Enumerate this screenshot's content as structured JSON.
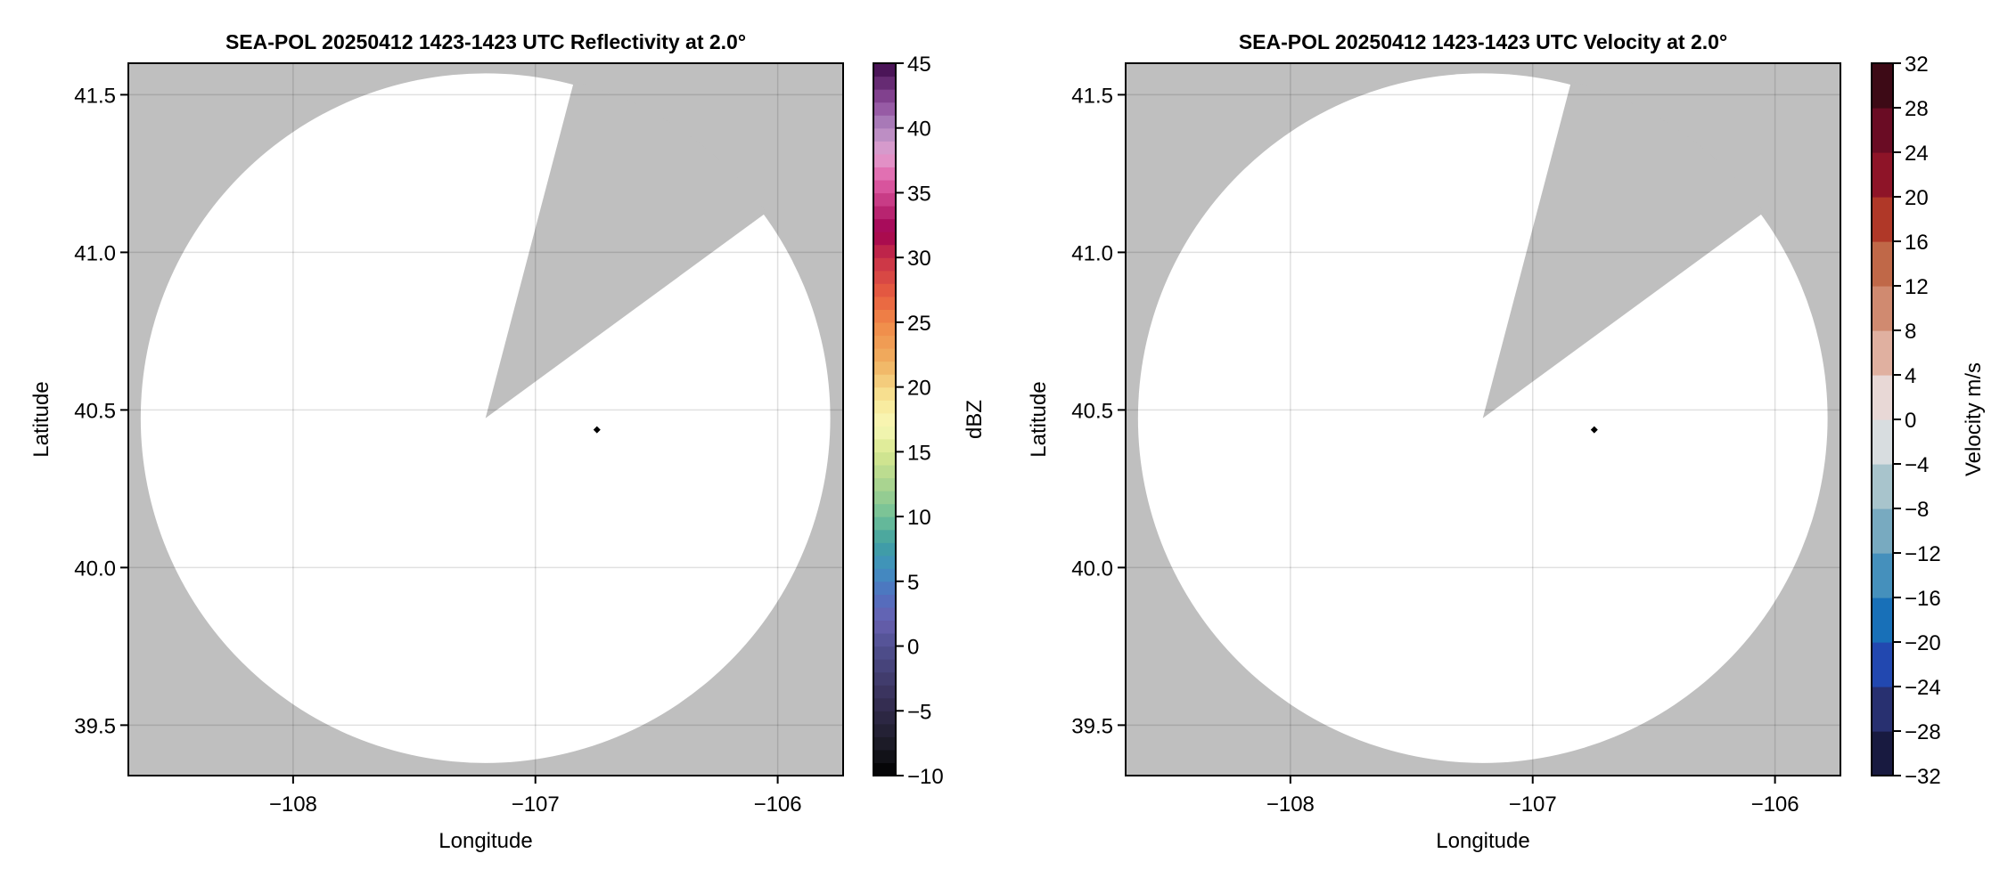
{
  "chart_data": [
    {
      "type": "heatmap",
      "title": "SEA-POL 20250412 1423-1423 UTC Reflectivity at 2.0°",
      "xlabel": "Longitude",
      "ylabel": "Latitude",
      "xlim": [
        -108.68,
        -105.73
      ],
      "ylim": [
        39.34,
        41.6
      ],
      "xticks": [
        -108,
        -107,
        -106
      ],
      "xtick_labels": [
        "−108",
        "−107",
        "−106"
      ],
      "yticks": [
        39.5,
        40.0,
        40.5,
        41.0,
        41.5
      ],
      "ytick_labels": [
        "39.5",
        "40.0",
        "40.5",
        "41.0",
        "41.5"
      ],
      "grid": true,
      "background_color": "#bfbfbf",
      "coverage_color": "#ffffff",
      "coverage_center": [
        -107.206,
        40.474
      ],
      "coverage_radius_deg": [
        1.423,
        1.094
      ],
      "blocked_sector_edges": [
        [
          -106.847,
          41.524
        ],
        [
          -106.063,
          41.117
        ]
      ],
      "radar_marker": [
        -106.746,
        40.437
      ],
      "colorbar": {
        "label": "dBZ",
        "range": [
          -10,
          45
        ],
        "ticks": [
          -10,
          -5,
          0,
          5,
          10,
          15,
          20,
          25,
          30,
          35,
          40,
          45
        ],
        "tick_labels": [
          "−10",
          "−5",
          "0",
          "5",
          "10",
          "15",
          "20",
          "25",
          "30",
          "35",
          "40",
          "45"
        ],
        "step": 1,
        "anchors": [
          [
            -10,
            "#000000"
          ],
          [
            -8,
            "#181820"
          ],
          [
            -4,
            "#383058"
          ],
          [
            0,
            "#505090"
          ],
          [
            2,
            "#6860b0"
          ],
          [
            4,
            "#5070c0"
          ],
          [
            6,
            "#4090c0"
          ],
          [
            8,
            "#40a0a0"
          ],
          [
            10,
            "#70c098"
          ],
          [
            12,
            "#a0d090"
          ],
          [
            15,
            "#d8e890"
          ],
          [
            17,
            "#f8f8b8"
          ],
          [
            19,
            "#f8e898"
          ],
          [
            22,
            "#f0b060"
          ],
          [
            25,
            "#f08848"
          ],
          [
            27,
            "#e86040"
          ],
          [
            30,
            "#c83048"
          ],
          [
            32,
            "#a00050"
          ],
          [
            34,
            "#c0307a"
          ],
          [
            36,
            "#e060a8"
          ],
          [
            38,
            "#e2a0d0"
          ],
          [
            40,
            "#b088c0"
          ],
          [
            42,
            "#8e4c9c"
          ],
          [
            45,
            "#3d0a4a"
          ]
        ]
      }
    },
    {
      "type": "heatmap",
      "title": "SEA-POL 20250412 1423-1423 UTC Velocity at 2.0°",
      "xlabel": "Longitude",
      "ylabel": "Latitude",
      "xlim": [
        -108.68,
        -105.73
      ],
      "ylim": [
        39.34,
        41.6
      ],
      "xticks": [
        -108,
        -107,
        -106
      ],
      "xtick_labels": [
        "−108",
        "−107",
        "−106"
      ],
      "yticks": [
        39.5,
        40.0,
        40.5,
        41.0,
        41.5
      ],
      "ytick_labels": [
        "39.5",
        "40.0",
        "40.5",
        "41.0",
        "41.5"
      ],
      "grid": true,
      "background_color": "#bfbfbf",
      "coverage_color": "#ffffff",
      "coverage_center": [
        -107.206,
        40.474
      ],
      "coverage_radius_deg": [
        1.423,
        1.094
      ],
      "blocked_sector_edges": [
        [
          -106.847,
          41.524
        ],
        [
          -106.063,
          41.117
        ]
      ],
      "radar_marker": [
        -106.746,
        40.437
      ],
      "colorbar": {
        "label": "Velocity m/s",
        "range": [
          -32,
          32
        ],
        "ticks": [
          -32,
          -28,
          -24,
          -20,
          -16,
          -12,
          -8,
          -4,
          0,
          4,
          8,
          12,
          16,
          20,
          24,
          28,
          32
        ],
        "tick_labels": [
          "−32",
          "−28",
          "−24",
          "−20",
          "−16",
          "−12",
          "−8",
          "−4",
          "0",
          "4",
          "8",
          "12",
          "16",
          "20",
          "24",
          "28",
          "32"
        ],
        "step": 4,
        "colors": [
          "#181a40",
          "#283070",
          "#2248b0",
          "#1870b8",
          "#4590bc",
          "#78aac0",
          "#a8c4cc",
          "#d8dde0",
          "#e8d8d6",
          "#e0b0a0",
          "#d08a70",
          "#c06848",
          "#b03828",
          "#8e1428",
          "#6a0c24",
          "#3d0a16"
        ]
      }
    }
  ]
}
